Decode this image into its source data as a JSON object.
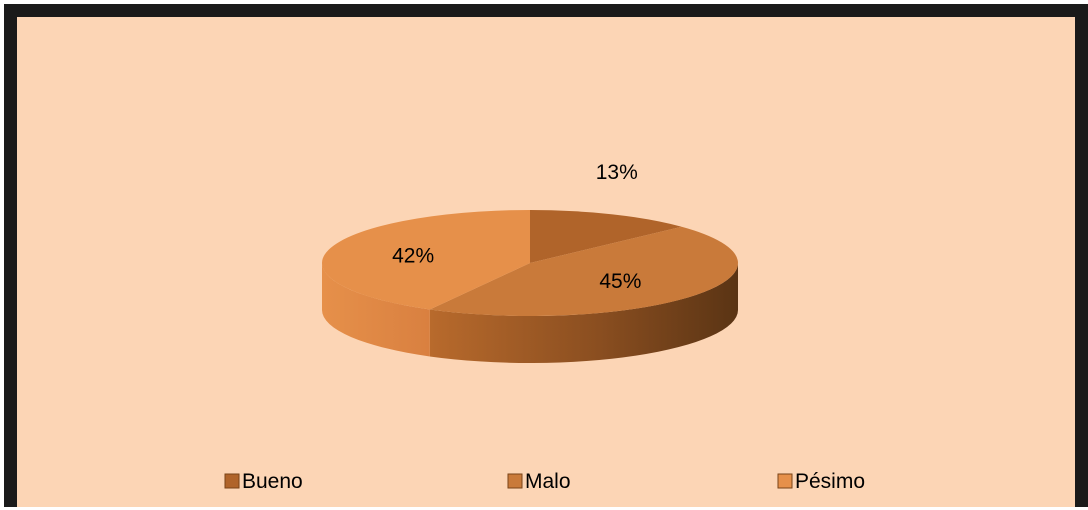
{
  "chart_data": {
    "type": "pie",
    "three_d": true,
    "categories": [
      "Bueno",
      "Malo",
      "Pésimo"
    ],
    "values": [
      13,
      45,
      42
    ],
    "data_labels": [
      "13%",
      "45%",
      "42%"
    ],
    "colors": [
      "#b0642a",
      "#c97a3a",
      "#e6904a"
    ],
    "legend": {
      "placement": "bottom",
      "entries": [
        "Bueno",
        "Malo",
        "Pésimo"
      ]
    },
    "title": ""
  },
  "background_color": "#fcd5b5",
  "frame_color": "#1a1a1a"
}
